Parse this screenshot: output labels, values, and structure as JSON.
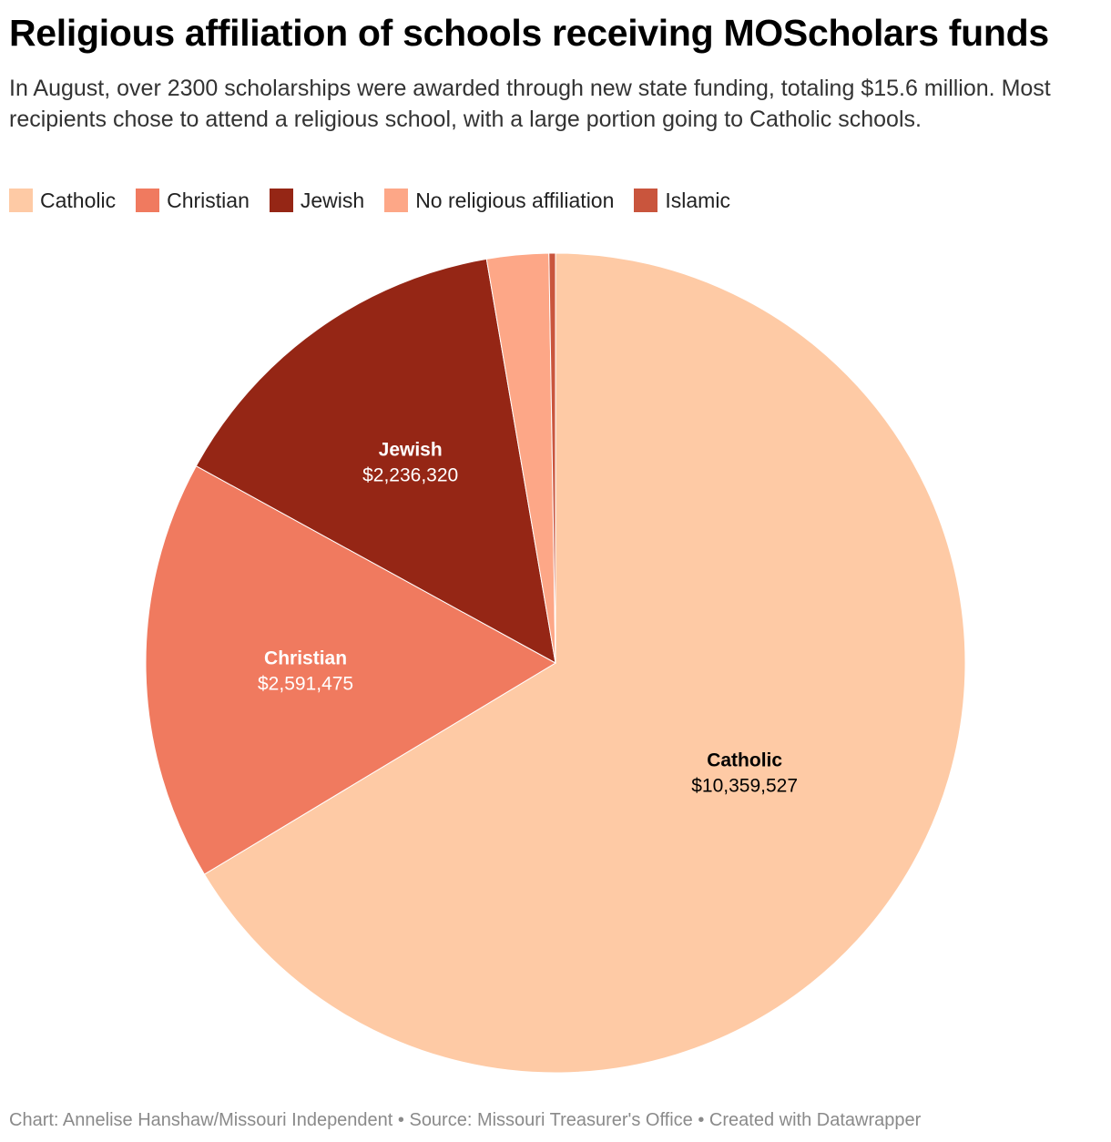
{
  "header": {
    "title": "Religious affiliation of schools receiving MOScholars funds",
    "subtitle": "In August, over 2300 scholarships were awarded through new state funding, totaling $15.6 million. Most recipients chose to attend a religious school, with a large portion going to Catholic schools."
  },
  "legend": {
    "items": [
      {
        "label": "Catholic",
        "color": "#fecaa5"
      },
      {
        "label": "Christian",
        "color": "#f07a5f"
      },
      {
        "label": "Jewish",
        "color": "#952615"
      },
      {
        "label": "No religious affiliation",
        "color": "#fda787"
      },
      {
        "label": "Islamic",
        "color": "#c9553d"
      }
    ]
  },
  "chart_data": {
    "type": "pie",
    "title": "Religious affiliation of schools receiving MOScholars funds",
    "start": "12 o'clock, clockwise",
    "slices": [
      {
        "label": "Catholic",
        "value": 10359527,
        "value_label": "$10,359,527",
        "color": "#fecaa5",
        "label_color": "#000000",
        "show_label": true
      },
      {
        "label": "Christian",
        "value": 2591475,
        "value_label": "$2,591,475",
        "color": "#f07a5f",
        "label_color": "#ffffff",
        "show_label": true
      },
      {
        "label": "Jewish",
        "value": 2236320,
        "value_label": "$2,236,320",
        "color": "#952615",
        "label_color": "#ffffff",
        "show_label": true
      },
      {
        "label": "No religious affiliation",
        "value": 380000,
        "value_label": "",
        "color": "#fda787",
        "label_color": "#000000",
        "show_label": false
      },
      {
        "label": "Islamic",
        "value": 40000,
        "value_label": "",
        "color": "#c9553d",
        "label_color": "#ffffff",
        "show_label": false
      }
    ]
  },
  "footer": {
    "source": "Chart: Annelise Hanshaw/Missouri Independent • Source: Missouri Treasurer's Office • Created with Datawrapper"
  }
}
